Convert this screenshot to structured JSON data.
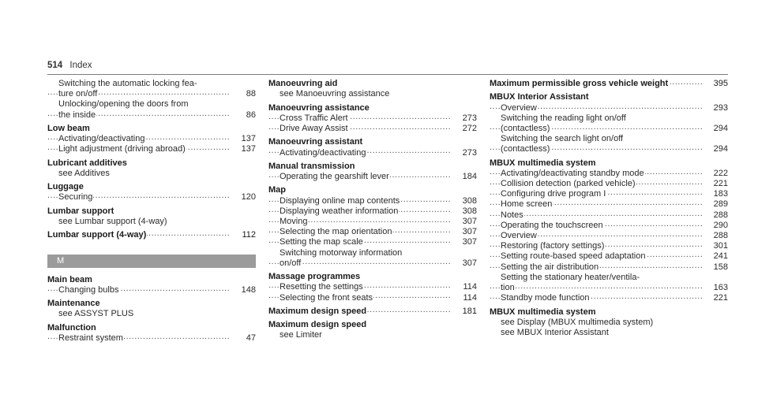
{
  "header": {
    "page_number": "514",
    "title": "Index"
  },
  "section_letter": "M",
  "col1": [
    {
      "t": "Switching the automatic locking fea-",
      "s": 1
    },
    {
      "t": "ture on/off",
      "p": "88",
      "s": 1
    },
    {
      "t": "Unlocking/opening the doors from",
      "s": 1
    },
    {
      "t": "the inside",
      "p": "86",
      "s": 1
    },
    {
      "t": "Low beam",
      "h": 1
    },
    {
      "t": "Activating/deactivating",
      "p": "137",
      "s": 1
    },
    {
      "t": "Light adjustment (driving abroad)",
      "p": "137",
      "s": 1
    },
    {
      "t": "Lubricant additives",
      "h": 1
    },
    {
      "t": "see Additives",
      "s": 1
    },
    {
      "t": "Luggage",
      "h": 1
    },
    {
      "t": "Securing",
      "p": "120",
      "s": 1
    },
    {
      "t": "Lumbar support",
      "h": 1
    },
    {
      "t": "see Lumbar support (4-way)",
      "s": 1
    },
    {
      "t": "Lumbar support (4-way)",
      "p": "112",
      "h": 1
    }
  ],
  "col1b": [
    {
      "t": "Main beam",
      "h": 1
    },
    {
      "t": "Changing bulbs",
      "p": "148",
      "s": 1
    },
    {
      "t": "Maintenance",
      "h": 1
    },
    {
      "t": "see ASSYST PLUS",
      "s": 1
    },
    {
      "t": "Malfunction",
      "h": 1
    },
    {
      "t": "Restraint system",
      "p": "47",
      "s": 1
    }
  ],
  "col2": [
    {
      "t": "Manoeuvring aid",
      "h": 1
    },
    {
      "t": "see Manoeuvring assistance",
      "s": 1
    },
    {
      "t": "Manoeuvring assistance",
      "h": 1
    },
    {
      "t": "Cross Traffic Alert",
      "p": "273",
      "s": 1
    },
    {
      "t": "Drive Away Assist",
      "p": "272",
      "s": 1
    },
    {
      "t": "Manoeuvring assistant",
      "h": 1
    },
    {
      "t": "Activating/deactivating",
      "p": "273",
      "s": 1
    },
    {
      "t": "Manual transmission",
      "h": 1
    },
    {
      "t": "Operating the gearshift lever",
      "p": "184",
      "s": 1
    },
    {
      "t": "Map",
      "h": 1
    },
    {
      "t": "Displaying online map contents",
      "p": "308",
      "s": 1
    },
    {
      "t": "Displaying weather information",
      "p": "308",
      "s": 1
    },
    {
      "t": "Moving",
      "p": "307",
      "s": 1
    },
    {
      "t": "Selecting the map orientation",
      "p": "307",
      "s": 1
    },
    {
      "t": "Setting the map scale",
      "p": "307",
      "s": 1
    },
    {
      "t": "Switching motorway information",
      "s": 1
    },
    {
      "t": "on/off",
      "p": "307",
      "s": 1
    },
    {
      "t": "Massage programmes",
      "h": 1
    },
    {
      "t": "Resetting the settings",
      "p": "114",
      "s": 1
    },
    {
      "t": "Selecting the front seats",
      "p": "114",
      "s": 1
    },
    {
      "t": "Maximum design speed",
      "p": "181",
      "h": 1
    },
    {
      "t": "Maximum design speed",
      "h": 1
    },
    {
      "t": "see Limiter",
      "s": 1
    }
  ],
  "col3": [
    {
      "t": "Maximum permissible gross vehicle weight",
      "p": "395",
      "h": 1
    },
    {
      "t": "MBUX Interior Assistant",
      "h": 1
    },
    {
      "t": "Overview",
      "p": "293",
      "s": 1
    },
    {
      "t": "Switching the reading light on/off",
      "s": 1
    },
    {
      "t": "(contactless)",
      "p": "294",
      "s": 1
    },
    {
      "t": "Switching the search light on/off",
      "s": 1
    },
    {
      "t": "(contactless)",
      "p": "294",
      "s": 1
    },
    {
      "t": "MBUX multimedia system",
      "h": 1
    },
    {
      "t": "Activating/deactivating standby mode",
      "p": "222",
      "s": 1
    },
    {
      "t": "Collision detection (parked vehicle)",
      "p": "221",
      "s": 1
    },
    {
      "t": "Configuring drive program I",
      "p": "183",
      "s": 1
    },
    {
      "t": "Home screen",
      "p": "289",
      "s": 1
    },
    {
      "t": "Notes",
      "p": "288",
      "s": 1
    },
    {
      "t": "Operating the touchscreen",
      "p": "290",
      "s": 1
    },
    {
      "t": "Overview",
      "p": "288",
      "s": 1
    },
    {
      "t": "Restoring (factory settings)",
      "p": "301",
      "s": 1
    },
    {
      "t": "Setting route-based speed adaptation",
      "p": "241",
      "s": 1
    },
    {
      "t": "Setting the air distribution",
      "p": "158",
      "s": 1
    },
    {
      "t": "Setting the stationary heater/ventila-",
      "s": 1
    },
    {
      "t": "tion",
      "p": "163",
      "s": 1
    },
    {
      "t": "Standby mode function",
      "p": "221",
      "s": 1
    },
    {
      "t": "MBUX multimedia system",
      "h": 1
    },
    {
      "t": "see Display (MBUX multimedia system)",
      "s": 1
    },
    {
      "t": "see MBUX Interior Assistant",
      "s": 1
    }
  ]
}
